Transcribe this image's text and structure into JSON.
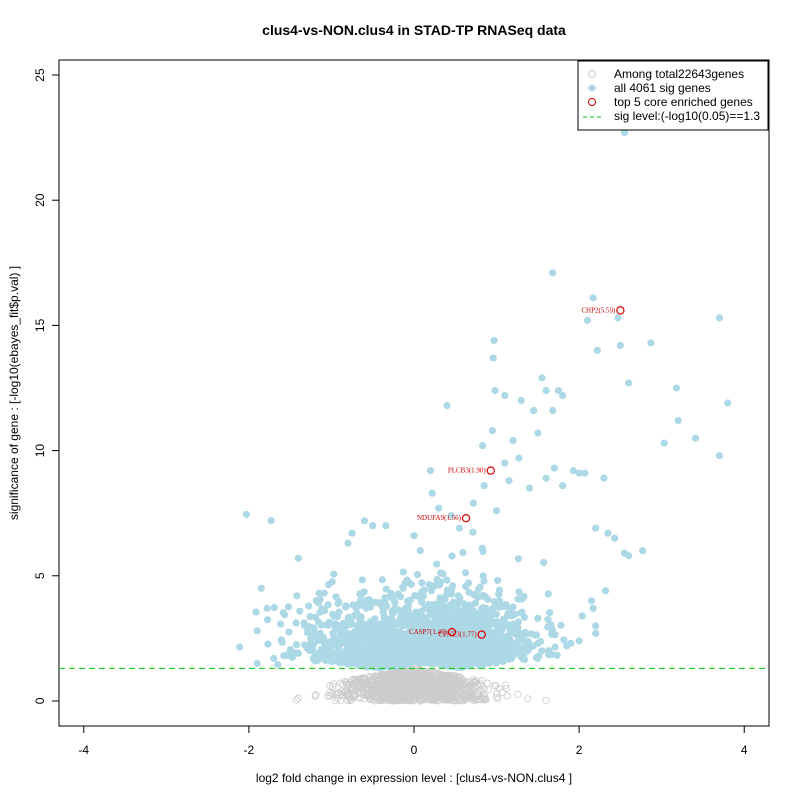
{
  "chart_data": {
    "type": "scatter",
    "title": "clus4-vs-NON.clus4 in STAD-TP RNASeq data",
    "xlabel": "log2 fold change in expression level : [clus4-vs-NON.clus4 ]",
    "ylabel": "significance of gene : [-log10(ebayes_fit$p.val) ]",
    "xlim": [
      -4.3,
      4.3
    ],
    "ylim": [
      -1.0,
      25.6
    ],
    "xticks": [
      -4,
      -2,
      0,
      2,
      4
    ],
    "yticks": [
      0,
      5,
      10,
      15,
      20,
      25
    ],
    "threshold": 1.3,
    "threshold_label": "sig level:(-log10(0.05)==1.3",
    "legend": {
      "position": "top-right",
      "entries": [
        {
          "label": "Among total22643genes",
          "symbol": "open-circle",
          "color": "#cccccc"
        },
        {
          "label": "all 4061 sig genes",
          "symbol": "filled-circle",
          "color": "#add8e6"
        },
        {
          "label": "top 5 core enriched genes",
          "symbol": "open-circle",
          "color": "#dd0000"
        },
        {
          "label": "sig level:(-log10(0.05)==1.3",
          "symbol": "dashed-line",
          "color": "#00cc00"
        }
      ]
    },
    "colors": {
      "nonsig": "#cccccc",
      "sig": "#add8e6",
      "top": "#dd0000",
      "threshold": "#00cc00"
    },
    "top_genes": [
      {
        "label": "CHP2(5.59)",
        "x": 2.5,
        "y": 15.6
      },
      {
        "label": "PLCB3(1.90)",
        "x": 0.93,
        "y": 9.2
      },
      {
        "label": "NDUFA9(1.56)",
        "x": 0.63,
        "y": 7.3
      },
      {
        "label": "CASP7(1.40)",
        "x": 0.46,
        "y": 2.75
      },
      {
        "label": "CPNE3(1.77)",
        "x": 0.82,
        "y": 2.65
      }
    ],
    "sig_outliers": [
      [
        2.55,
        22.7
      ],
      [
        1.68,
        17.1
      ],
      [
        2.17,
        16.1
      ],
      [
        2.1,
        15.2
      ],
      [
        2.22,
        14.0
      ],
      [
        2.47,
        15.3
      ],
      [
        2.5,
        14.2
      ],
      [
        2.87,
        14.3
      ],
      [
        3.7,
        15.3
      ],
      [
        3.8,
        11.9
      ],
      [
        3.18,
        12.5
      ],
      [
        3.2,
        11.2
      ],
      [
        3.03,
        10.3
      ],
      [
        3.41,
        10.5
      ],
      [
        3.7,
        9.8
      ],
      [
        2.6,
        12.7
      ],
      [
        1.55,
        12.9
      ],
      [
        1.6,
        12.4
      ],
      [
        0.97,
        14.4
      ],
      [
        0.96,
        13.7
      ],
      [
        0.98,
        12.4
      ],
      [
        1.1,
        12.2
      ],
      [
        1.3,
        12.0
      ],
      [
        1.45,
        11.6
      ],
      [
        1.75,
        12.4
      ],
      [
        1.8,
        12.2
      ],
      [
        1.68,
        11.6
      ],
      [
        2.0,
        9.1
      ],
      [
        1.93,
        9.2
      ],
      [
        2.07,
        9.1
      ],
      [
        2.3,
        8.9
      ],
      [
        2.35,
        6.7
      ],
      [
        2.2,
        6.9
      ],
      [
        2.43,
        6.5
      ],
      [
        2.55,
        5.9
      ],
      [
        2.77,
        6.0
      ],
      [
        2.6,
        5.8
      ],
      [
        2.32,
        4.4
      ],
      [
        2.15,
        4.0
      ],
      [
        2.17,
        3.7
      ],
      [
        2.2,
        3.0
      ],
      [
        2.2,
        2.7
      ],
      [
        2.0,
        2.4
      ],
      [
        1.9,
        2.3
      ],
      [
        1.85,
        2.2
      ],
      [
        0.4,
        11.8
      ],
      [
        0.83,
        10.2
      ],
      [
        0.95,
        10.8
      ],
      [
        1.2,
        10.4
      ],
      [
        1.5,
        10.7
      ],
      [
        1.7,
        9.3
      ],
      [
        1.8,
        8.6
      ],
      [
        1.6,
        8.9
      ],
      [
        1.4,
        8.5
      ],
      [
        1.27,
        9.7
      ],
      [
        1.1,
        9.5
      ],
      [
        1.15,
        8.8
      ],
      [
        0.85,
        8.6
      ],
      [
        0.72,
        7.9
      ],
      [
        1.0,
        7.6
      ],
      [
        -2.03,
        7.45
      ],
      [
        -1.73,
        7.2
      ],
      [
        -1.9,
        2.8
      ],
      [
        -1.85,
        4.5
      ],
      [
        -1.78,
        3.7
      ],
      [
        -1.9,
        1.5
      ],
      [
        -1.7,
        1.7
      ],
      [
        -1.65,
        1.45
      ],
      [
        -1.4,
        5.7
      ],
      [
        -1.42,
        4.2
      ],
      [
        -1.4,
        1.9
      ],
      [
        -1.3,
        2.2
      ],
      [
        -1.25,
        2.5
      ],
      [
        -1.2,
        1.6
      ],
      [
        -1.15,
        4.3
      ],
      [
        -0.6,
        7.2
      ],
      [
        -0.5,
        7.0
      ],
      [
        -0.75,
        6.7
      ],
      [
        -0.8,
        6.3
      ],
      [
        0.0,
        6.6
      ],
      [
        0.2,
        9.2
      ],
      [
        0.3,
        7.7
      ],
      [
        0.22,
        8.3
      ],
      [
        0.45,
        7.4
      ],
      [
        0.55,
        6.9
      ]
    ],
    "sig_clouds": [
      {
        "side": "left",
        "x_center": -0.42,
        "x_spread": 0.45,
        "count": 900,
        "y_scale": 1.1
      },
      {
        "side": "right",
        "x_center": 0.55,
        "x_spread": 0.45,
        "count": 900,
        "y_scale": 1.5
      }
    ],
    "nonsig_cloud": {
      "x_center": 0.0,
      "x_spread": 0.42,
      "count": 1200,
      "y_max": 1.3
    }
  }
}
